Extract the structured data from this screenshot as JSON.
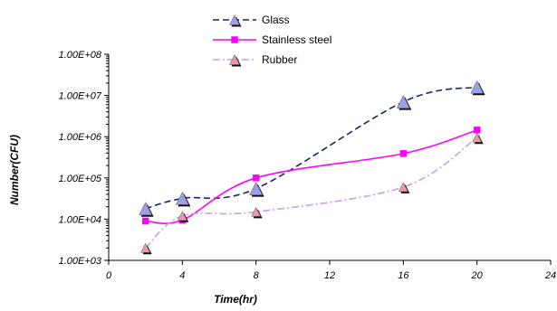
{
  "chart_data": {
    "type": "line",
    "xlabel": "Time(hr)",
    "ylabel": "Number(CFU)",
    "x_scale": "linear",
    "y_scale": "log",
    "xlim": [
      0,
      24
    ],
    "ylim": [
      1000,
      100000000
    ],
    "x_ticks": [
      "0",
      "4",
      "8",
      "12",
      "16",
      "20",
      "24"
    ],
    "y_ticks": [
      "1.00E+03",
      "1.00E+04",
      "1.00E+05",
      "1.00E+06",
      "1.00E+07",
      "1.00E+08"
    ],
    "x_tick_values": [
      0,
      4,
      8,
      12,
      16,
      20,
      24
    ],
    "y_tick_values": [
      1000,
      10000,
      100000,
      1000000,
      10000000,
      100000000
    ],
    "grid": false,
    "legend_position": "top-center",
    "series": [
      {
        "name": "Glass",
        "color": "#1a2470",
        "line_style": "dashed",
        "marker": "triangle",
        "marker_color": "#9d9ee8",
        "x": [
          2,
          4,
          8,
          16,
          20
        ],
        "y": [
          18000,
          32000,
          55000,
          7000000,
          16000000
        ]
      },
      {
        "name": "Stainless steel",
        "color": "#ff00ff",
        "line_style": "solid",
        "marker": "square",
        "marker_color": "#ff00ff",
        "x": [
          2,
          4,
          8,
          16,
          20
        ],
        "y": [
          9000,
          9500,
          100000,
          390000,
          1450000
        ]
      },
      {
        "name": "Rubber",
        "color": "#c8a0e6",
        "line_style": "dashdot",
        "marker": "triangle",
        "marker_color": "#e89aa8",
        "x": [
          2,
          4,
          8,
          16,
          20
        ],
        "y": [
          2000,
          12000,
          15000,
          60000,
          950000
        ]
      }
    ]
  }
}
